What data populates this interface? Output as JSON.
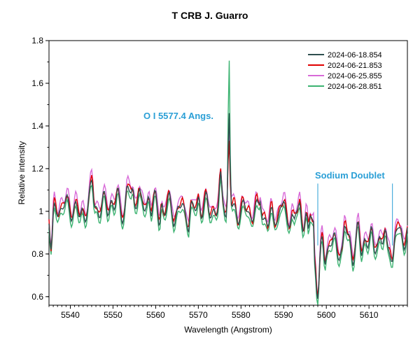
{
  "chart_data": {
    "type": "line",
    "title": "T CRB   J. Guarro",
    "xlabel": "Wavelength (Angstrom)",
    "ylabel": "Relative intensity",
    "xlim": [
      5535,
      5619
    ],
    "ylim": [
      0.56,
      1.8
    ],
    "xticks": [
      5540,
      5550,
      5560,
      5570,
      5580,
      5590,
      5600,
      5610
    ],
    "yticks": [
      0.6,
      0.8,
      1,
      1.2,
      1.4,
      1.6,
      1.8
    ],
    "ytick_labels": [
      "0.6",
      "0.8",
      "1",
      "1.2",
      "1.4",
      "1.6",
      "1.8"
    ],
    "grid": false,
    "legend_position": "top-right",
    "series": [
      {
        "name": "2024-06-18.854",
        "color": "#2f4f4f",
        "peak": 1.44
      },
      {
        "name": "2024-06-21.853",
        "color": "#e00000",
        "peak": 1.31
      },
      {
        "name": "2024-06-25.855",
        "color": "#d86ad8",
        "peak": 1.36
      },
      {
        "name": "2024-06-28.851",
        "color": "#3cb371",
        "peak": 1.72
      }
    ],
    "annotations": [
      {
        "text": "O I  5577.4 Angs.",
        "color": "#2a9fd6"
      },
      {
        "text": "Sodium  Doublet",
        "color": "#2a9fd6",
        "markers_x": [
          5598.0,
          5615.5
        ]
      }
    ]
  }
}
